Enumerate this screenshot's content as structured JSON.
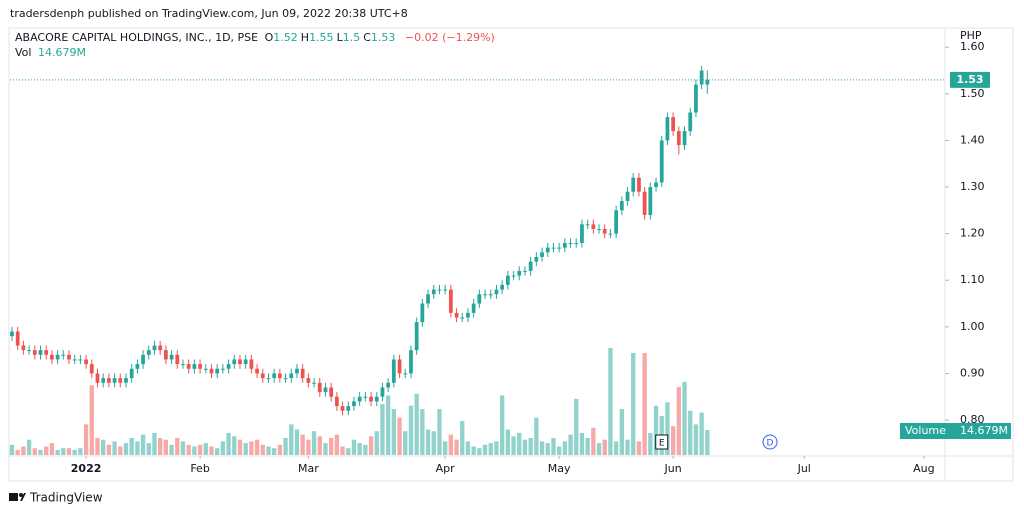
{
  "header": {
    "publisher": "tradersdenph published on TradingView.com, Jun 09, 2022 20:38 UTC+8"
  },
  "footer": {
    "brand": "TradingView"
  },
  "chart_data": {
    "type": "candlestick",
    "symbol": "ABACORE CAPITAL HOLDINGS, INC., 1D, PSE",
    "ohlc_letters": [
      "O",
      "H",
      "L",
      "C"
    ],
    "change_label": "−0.02 (−1.29%)",
    "volume_name": "Vol",
    "volume_title": "Volume",
    "volume_label": "14.679M",
    "currency": "PHP",
    "up_color": "#26a69a",
    "down_color": "#ef5350",
    "grid": false,
    "ylim": [
      0.725,
      1.637
    ],
    "yticks": [
      {
        "value": 0.8,
        "label": "0.80"
      },
      {
        "value": 0.9,
        "label": "0.90"
      },
      {
        "value": 1.0,
        "label": "1.00"
      },
      {
        "value": 1.1,
        "label": "1.10"
      },
      {
        "value": 1.2,
        "label": "1.20"
      },
      {
        "value": 1.3,
        "label": "1.30"
      },
      {
        "value": 1.4,
        "label": "1.40"
      },
      {
        "value": 1.5,
        "label": "1.50"
      },
      {
        "value": 1.6,
        "label": "1.60"
      }
    ],
    "xlim": [
      -0.35,
      163.7
    ],
    "xticks": [
      {
        "value": 13,
        "label": "2022"
      },
      {
        "value": 33,
        "label": "Feb"
      },
      {
        "value": 52,
        "label": "Mar"
      },
      {
        "value": 76,
        "label": "Apr"
      },
      {
        "value": 96,
        "label": "May"
      },
      {
        "value": 116,
        "label": "Jun"
      },
      {
        "value": 139,
        "label": "Jul"
      },
      {
        "value": 160,
        "label": "Aug"
      }
    ],
    "volume_ylim": [
      0,
      250
    ],
    "event_markers": [
      {
        "label": "E",
        "index": 114
      },
      {
        "label": "D",
        "index": 133
      }
    ],
    "open": [
      0.98,
      0.99,
      0.96,
      0.95,
      0.95,
      0.94,
      0.95,
      0.94,
      0.93,
      0.94,
      0.94,
      0.93,
      0.93,
      0.93,
      0.92,
      0.9,
      0.88,
      0.89,
      0.88,
      0.89,
      0.88,
      0.89,
      0.91,
      0.92,
      0.94,
      0.95,
      0.96,
      0.95,
      0.93,
      0.94,
      0.92,
      0.92,
      0.91,
      0.92,
      0.91,
      0.91,
      0.9,
      0.91,
      0.91,
      0.92,
      0.93,
      0.92,
      0.93,
      0.91,
      0.9,
      0.89,
      0.89,
      0.9,
      0.89,
      0.89,
      0.9,
      0.91,
      0.89,
      0.88,
      0.88,
      0.86,
      0.87,
      0.85,
      0.83,
      0.82,
      0.83,
      0.84,
      0.85,
      0.85,
      0.84,
      0.85,
      0.87,
      0.88,
      0.93,
      0.9,
      0.9,
      0.95,
      1.01,
      1.05,
      1.07,
      1.08,
      1.08,
      1.08,
      1.03,
      1.02,
      1.02,
      1.03,
      1.05,
      1.07,
      1.07,
      1.07,
      1.08,
      1.09,
      1.11,
      1.11,
      1.12,
      1.12,
      1.14,
      1.15,
      1.16,
      1.17,
      1.17,
      1.17,
      1.18,
      1.18,
      1.18,
      1.22,
      1.22,
      1.21,
      1.21,
      1.2,
      1.2,
      1.25,
      1.27,
      1.29,
      1.32,
      1.29,
      1.24,
      1.3,
      1.31,
      1.4,
      1.45,
      1.42,
      1.39,
      1.42,
      1.46,
      1.52,
      1.52
    ],
    "high": [
      1.0,
      1.0,
      0.97,
      0.96,
      0.96,
      0.96,
      0.96,
      0.95,
      0.95,
      0.95,
      0.95,
      0.94,
      0.94,
      0.94,
      0.93,
      0.91,
      0.9,
      0.9,
      0.9,
      0.9,
      0.9,
      0.92,
      0.93,
      0.95,
      0.96,
      0.97,
      0.97,
      0.96,
      0.95,
      0.95,
      0.93,
      0.93,
      0.93,
      0.93,
      0.92,
      0.92,
      0.92,
      0.92,
      0.93,
      0.94,
      0.94,
      0.94,
      0.94,
      0.92,
      0.91,
      0.9,
      0.91,
      0.91,
      0.9,
      0.91,
      0.92,
      0.92,
      0.9,
      0.89,
      0.89,
      0.88,
      0.88,
      0.86,
      0.84,
      0.84,
      0.85,
      0.86,
      0.86,
      0.86,
      0.86,
      0.88,
      0.89,
      0.94,
      0.94,
      0.91,
      0.96,
      1.02,
      1.06,
      1.08,
      1.09,
      1.09,
      1.09,
      1.09,
      1.04,
      1.03,
      1.04,
      1.06,
      1.08,
      1.08,
      1.08,
      1.09,
      1.1,
      1.12,
      1.12,
      1.13,
      1.13,
      1.15,
      1.16,
      1.17,
      1.18,
      1.18,
      1.18,
      1.19,
      1.19,
      1.19,
      1.23,
      1.23,
      1.23,
      1.22,
      1.22,
      1.21,
      1.26,
      1.28,
      1.3,
      1.33,
      1.33,
      1.3,
      1.31,
      1.32,
      1.41,
      1.46,
      1.46,
      1.43,
      1.43,
      1.47,
      1.53,
      1.56,
      1.55
    ],
    "low": [
      0.97,
      0.95,
      0.94,
      0.94,
      0.93,
      0.93,
      0.93,
      0.92,
      0.92,
      0.93,
      0.92,
      0.92,
      0.92,
      0.91,
      0.89,
      0.87,
      0.87,
      0.87,
      0.87,
      0.87,
      0.87,
      0.88,
      0.9,
      0.91,
      0.93,
      0.94,
      0.94,
      0.92,
      0.92,
      0.91,
      0.91,
      0.9,
      0.9,
      0.9,
      0.9,
      0.89,
      0.89,
      0.9,
      0.9,
      0.91,
      0.91,
      0.91,
      0.9,
      0.89,
      0.88,
      0.88,
      0.88,
      0.88,
      0.88,
      0.88,
      0.89,
      0.88,
      0.87,
      0.87,
      0.85,
      0.85,
      0.84,
      0.82,
      0.81,
      0.81,
      0.82,
      0.83,
      0.84,
      0.83,
      0.83,
      0.84,
      0.86,
      0.87,
      0.89,
      0.89,
      0.89,
      0.94,
      1.0,
      1.04,
      1.06,
      1.07,
      1.07,
      1.02,
      1.01,
      1.01,
      1.01,
      1.02,
      1.04,
      1.06,
      1.06,
      1.06,
      1.07,
      1.08,
      1.1,
      1.1,
      1.11,
      1.11,
      1.13,
      1.14,
      1.15,
      1.16,
      1.16,
      1.16,
      1.17,
      1.17,
      1.17,
      1.21,
      1.2,
      1.2,
      1.19,
      1.19,
      1.19,
      1.24,
      1.26,
      1.28,
      1.28,
      1.23,
      1.23,
      1.29,
      1.3,
      1.39,
      1.41,
      1.37,
      1.38,
      1.41,
      1.45,
      1.51,
      1.5
    ],
    "close": [
      0.99,
      0.96,
      0.95,
      0.95,
      0.94,
      0.95,
      0.94,
      0.93,
      0.94,
      0.94,
      0.93,
      0.93,
      0.93,
      0.92,
      0.9,
      0.88,
      0.89,
      0.88,
      0.89,
      0.88,
      0.89,
      0.91,
      0.92,
      0.94,
      0.95,
      0.96,
      0.95,
      0.93,
      0.94,
      0.92,
      0.92,
      0.91,
      0.92,
      0.91,
      0.91,
      0.9,
      0.91,
      0.91,
      0.92,
      0.93,
      0.92,
      0.93,
      0.91,
      0.9,
      0.89,
      0.89,
      0.9,
      0.89,
      0.89,
      0.9,
      0.91,
      0.89,
      0.88,
      0.88,
      0.86,
      0.87,
      0.85,
      0.83,
      0.82,
      0.83,
      0.84,
      0.85,
      0.85,
      0.84,
      0.85,
      0.87,
      0.88,
      0.93,
      0.9,
      0.9,
      0.95,
      1.01,
      1.05,
      1.07,
      1.08,
      1.08,
      1.08,
      1.03,
      1.02,
      1.02,
      1.03,
      1.05,
      1.07,
      1.07,
      1.07,
      1.08,
      1.09,
      1.11,
      1.11,
      1.12,
      1.12,
      1.14,
      1.15,
      1.16,
      1.17,
      1.17,
      1.17,
      1.18,
      1.18,
      1.18,
      1.22,
      1.22,
      1.21,
      1.21,
      1.2,
      1.2,
      1.25,
      1.27,
      1.29,
      1.32,
      1.29,
      1.24,
      1.3,
      1.31,
      1.4,
      1.45,
      1.42,
      1.39,
      1.42,
      1.46,
      1.52,
      1.55,
      1.53
    ],
    "volume": [
      6,
      3,
      5,
      9,
      4,
      3,
      5,
      7,
      3,
      4,
      4,
      3,
      4,
      18,
      41,
      10,
      9,
      6,
      8,
      5,
      7,
      10,
      8,
      12,
      7,
      13,
      10,
      9,
      6,
      10,
      8,
      6,
      5,
      6,
      7,
      5,
      4,
      8,
      13,
      11,
      9,
      7,
      8,
      9,
      6,
      5,
      4,
      6,
      10,
      18,
      15,
      12,
      9,
      14,
      11,
      7,
      10,
      12,
      5,
      4,
      9,
      7,
      6,
      11,
      14,
      30,
      35,
      27,
      22,
      14,
      29,
      36,
      27,
      15,
      14,
      27,
      8,
      12,
      9,
      20,
      8,
      5,
      4,
      6,
      7,
      8,
      35,
      15,
      11,
      13,
      9,
      10,
      22,
      8,
      7,
      10,
      5,
      8,
      12,
      33,
      13,
      10,
      16,
      7,
      9,
      63,
      8,
      27,
      9,
      60,
      8,
      60,
      13,
      29,
      23,
      31,
      17,
      40,
      43,
      26,
      18,
      25,
      14.679
    ]
  }
}
